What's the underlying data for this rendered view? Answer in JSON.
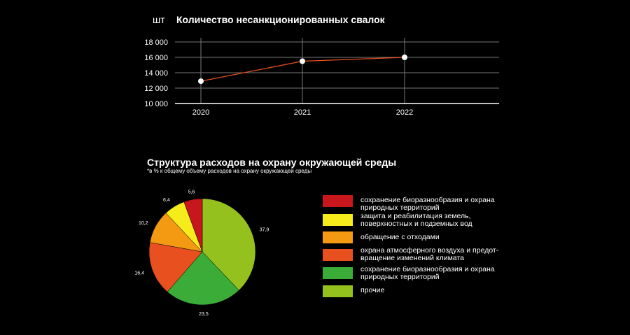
{
  "line_chart": {
    "unit": "шт",
    "title": "Количество несанкционированных свалок"
  },
  "pie_chart": {
    "title": "Структура расходов на охрану окружающей среды",
    "subtitle": "*в % к общему объему расходов на охрану окружающей среды",
    "legend": [
      {
        "label": "сохранение биоразнообразия и охрана\nприродных территорий",
        "color": "#c8161d"
      },
      {
        "label": "защита и реабилитация земель,\nповерхностных и подземных вод",
        "color": "#f7ec1b"
      },
      {
        "label": "обращение с отходами",
        "color": "#f39a12"
      },
      {
        "label": "охрана атмосферного воздуха и предот-\nвращение изменений климата",
        "color": "#e8501f"
      },
      {
        "label": "сохранение биоразнообразия и охрана\nприродных территорий",
        "color": "#3aac37"
      },
      {
        "label": "прочие",
        "color": "#95c11f"
      }
    ]
  },
  "chart_data": [
    {
      "type": "line",
      "title": "Количество несанкционированных свалок",
      "ylabel": "шт",
      "x": [
        "2020",
        "2021",
        "2022"
      ],
      "series": [
        {
          "values": [
            12900,
            15500,
            16000
          ]
        }
      ],
      "yticks": [
        "10 000",
        "12 000",
        "14 000",
        "16 000",
        "18 000"
      ],
      "ylim": [
        10000,
        18000
      ],
      "grid": true,
      "line_color": "#e8501f"
    },
    {
      "type": "pie",
      "title": "Структура расходов на охрану окружающей среды",
      "slices": [
        {
          "value": 37.9,
          "label": "37,9",
          "color": "#95c11f"
        },
        {
          "value": 23.5,
          "label": "23,5",
          "color": "#3aac37"
        },
        {
          "value": 16.4,
          "label": "16,4",
          "color": "#e8501f"
        },
        {
          "value": 10.2,
          "label": "10,2",
          "color": "#f39a12"
        },
        {
          "value": 6.4,
          "label": "6,4",
          "color": "#f7ec1b"
        },
        {
          "value": 5.6,
          "label": "5,6",
          "color": "#c8161d"
        }
      ]
    }
  ]
}
